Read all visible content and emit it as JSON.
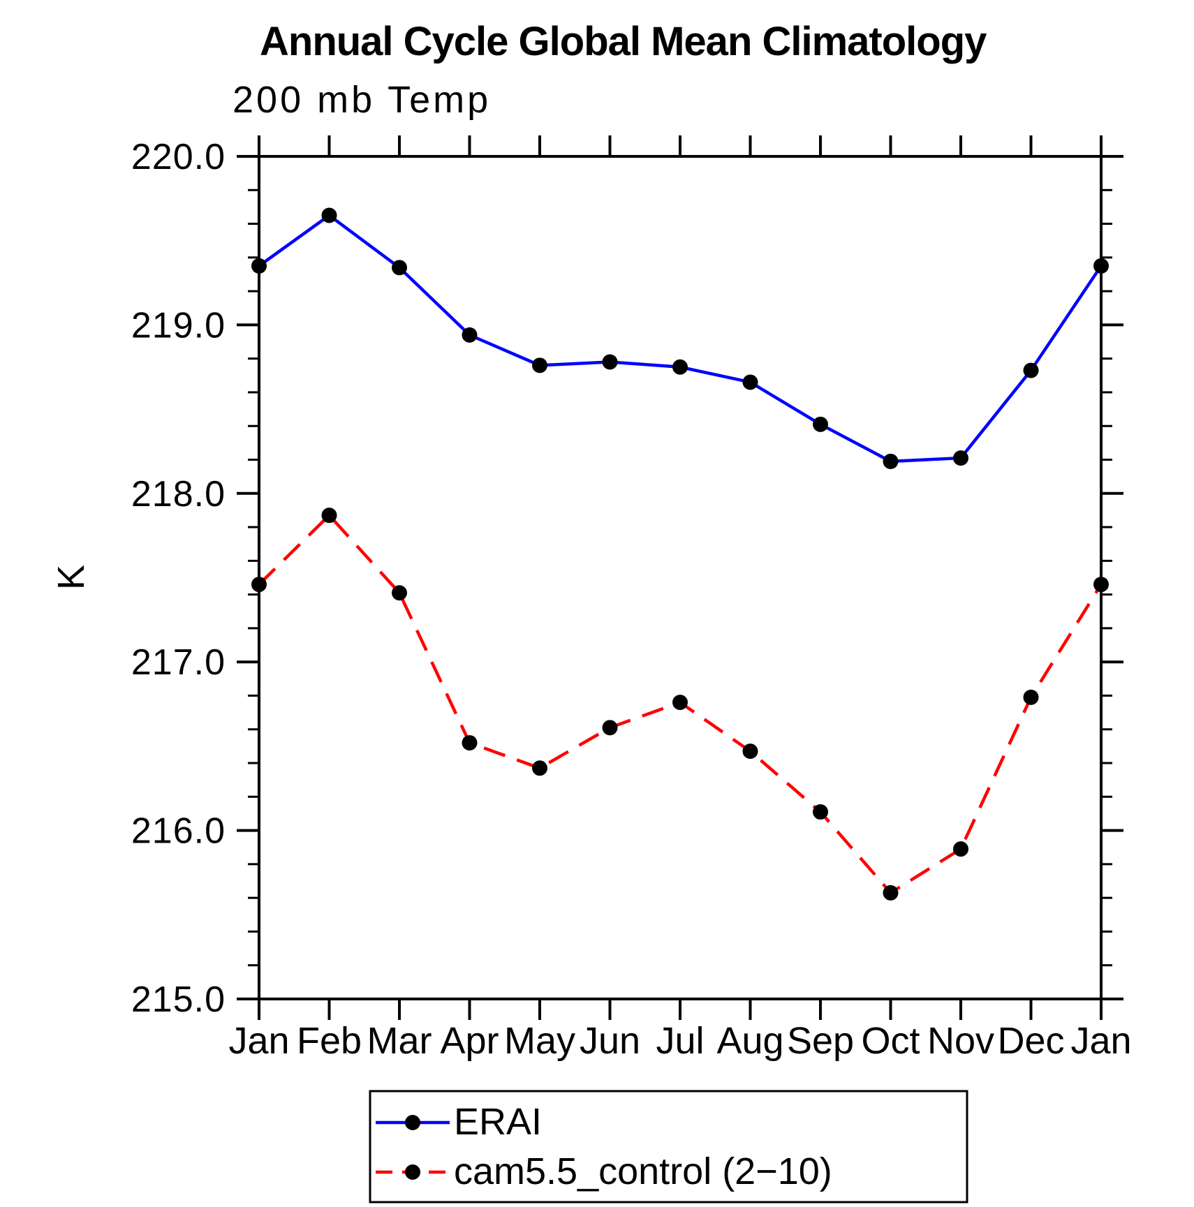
{
  "page": {
    "background": "#ffffff"
  },
  "chart_data": {
    "type": "line",
    "title": "Annual Cycle Global Mean Climatology",
    "subtitle": "200 mb Temp",
    "xlabel": "",
    "ylabel": "K",
    "ylim": [
      215.0,
      220.0
    ],
    "y_major_ticks": [
      215.0,
      216.0,
      217.0,
      218.0,
      219.0,
      220.0
    ],
    "y_tick_labels": [
      "215.0",
      "216.0",
      "217.0",
      "218.0",
      "219.0",
      "220.0"
    ],
    "y_minor_step": 0.2,
    "grid": false,
    "legend_position": "bottom",
    "x_tick_labels": [
      "Jan",
      "Feb",
      "Mar",
      "Apr",
      "May",
      "Jun",
      "Jul",
      "Aug",
      "Sep",
      "Oct",
      "Nov",
      "Dec",
      "Jan"
    ],
    "series": [
      {
        "name": "ERAI",
        "color": "#0000ff",
        "style": "solid",
        "marker": "circle",
        "marker_color": "#000000",
        "values": [
          219.35,
          219.65,
          219.34,
          218.94,
          218.76,
          218.78,
          218.75,
          218.66,
          218.41,
          218.19,
          218.21,
          218.73,
          219.35
        ]
      },
      {
        "name": "cam5.5_control (2−10)",
        "color": "#ff0000",
        "style": "dashed",
        "marker": "circle",
        "marker_color": "#000000",
        "values": [
          217.46,
          217.87,
          217.41,
          216.52,
          216.37,
          216.61,
          216.76,
          216.47,
          216.11,
          215.63,
          215.89,
          216.79,
          217.46
        ]
      }
    ]
  }
}
